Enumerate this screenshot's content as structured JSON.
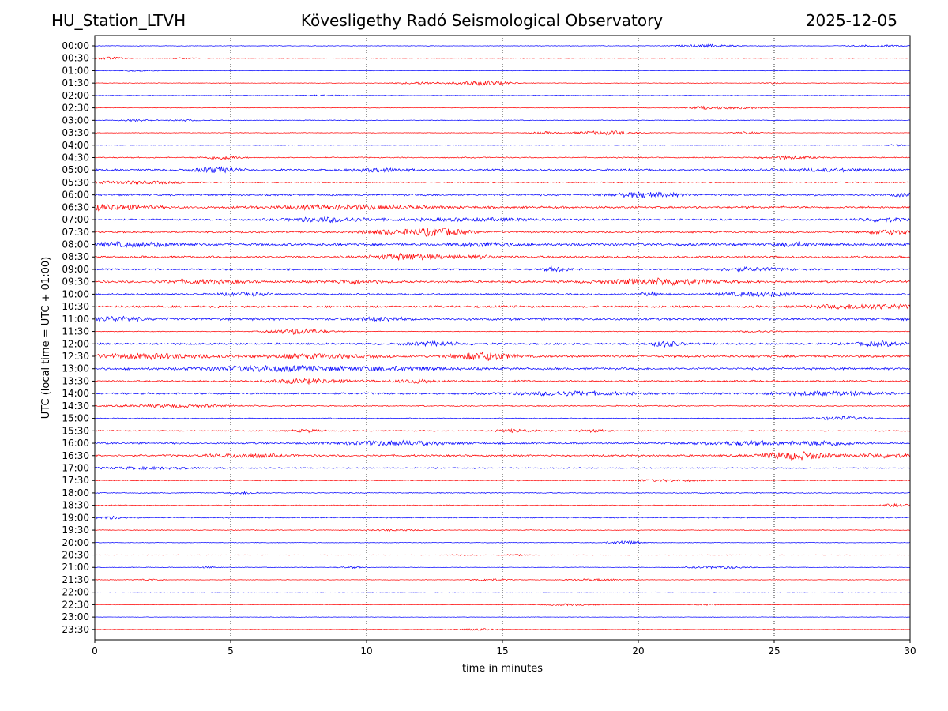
{
  "header": {
    "station": "HU_Station_LTVH",
    "observatory": "Kövesligethy Radó Seismological Observatory",
    "date": "2025-12-05"
  },
  "chart_data": {
    "type": "line",
    "title": "Kövesligethy Radó Seismological Observatory",
    "xlabel": "time in minutes",
    "ylabel": "UTC (local time = UTC + 01:00)",
    "xlim": [
      0,
      30
    ],
    "x_ticks": [
      0,
      5,
      10,
      15,
      20,
      25,
      30
    ],
    "grid": "vertical dotted lines at each x tick",
    "trace_colors": [
      "#0000ff",
      "#ff0000"
    ],
    "rows": [
      {
        "label": "00:00",
        "color": "#0000ff",
        "base": 0.3,
        "events": [
          {
            "t": 22.5,
            "a": 1.5,
            "w": 1.0
          },
          {
            "t": 28.8,
            "a": 1.2,
            "w": 0.8
          }
        ]
      },
      {
        "label": "00:30",
        "color": "#ff0000",
        "base": 0.3,
        "events": [
          {
            "t": 0.5,
            "a": 1.4,
            "w": 0.6
          },
          {
            "t": 3.3,
            "a": 0.8,
            "w": 0.5
          }
        ]
      },
      {
        "label": "01:00",
        "color": "#0000ff",
        "base": 0.3,
        "events": [
          {
            "t": 1.5,
            "a": 0.8,
            "w": 0.6
          }
        ]
      },
      {
        "label": "01:30",
        "color": "#ff0000",
        "base": 0.3,
        "events": [
          {
            "t": 14.3,
            "a": 2.8,
            "w": 1.0
          },
          {
            "t": 12.0,
            "a": 1.2,
            "w": 1.0
          },
          {
            "t": 25.0,
            "a": 0.9,
            "w": 0.3
          }
        ]
      },
      {
        "label": "02:00",
        "color": "#0000ff",
        "base": 0.3,
        "events": [
          {
            "t": 8.5,
            "a": 0.7,
            "w": 0.8
          }
        ]
      },
      {
        "label": "02:30",
        "color": "#ff0000",
        "base": 0.3,
        "events": [
          {
            "t": 22.5,
            "a": 1.8,
            "w": 0.8
          },
          {
            "t": 24.0,
            "a": 1.0,
            "w": 0.8
          }
        ]
      },
      {
        "label": "03:00",
        "color": "#0000ff",
        "base": 0.4,
        "events": [
          {
            "t": 1.5,
            "a": 1.0,
            "w": 0.5
          },
          {
            "t": 3.3,
            "a": 0.8,
            "w": 0.5
          }
        ]
      },
      {
        "label": "03:30",
        "color": "#ff0000",
        "base": 0.3,
        "events": [
          {
            "t": 18.8,
            "a": 2.2,
            "w": 1.2
          },
          {
            "t": 16.5,
            "a": 1.2,
            "w": 0.5
          },
          {
            "t": 24.0,
            "a": 1.0,
            "w": 0.6
          }
        ]
      },
      {
        "label": "04:00",
        "color": "#0000ff",
        "base": 0.3,
        "events": [
          {
            "t": 29.5,
            "a": 0.9,
            "w": 0.4
          }
        ]
      },
      {
        "label": "04:30",
        "color": "#ff0000",
        "base": 0.6,
        "events": [
          {
            "t": 4.7,
            "a": 2.2,
            "w": 0.6
          },
          {
            "t": 25.5,
            "a": 1.5,
            "w": 1.0
          }
        ]
      },
      {
        "label": "05:00",
        "color": "#0000ff",
        "base": 1.0,
        "events": [
          {
            "t": 4.5,
            "a": 3.0,
            "w": 0.8
          },
          {
            "t": 10.5,
            "a": 1.8,
            "w": 1.0
          },
          {
            "t": 27.0,
            "a": 1.3,
            "w": 2.0
          }
        ]
      },
      {
        "label": "05:30",
        "color": "#ff0000",
        "base": 0.6,
        "events": [
          {
            "t": 1.5,
            "a": 1.5,
            "w": 2.0
          }
        ]
      },
      {
        "label": "06:00",
        "color": "#0000ff",
        "base": 1.0,
        "events": [
          {
            "t": 20.3,
            "a": 3.0,
            "w": 1.2
          },
          {
            "t": 29.8,
            "a": 1.8,
            "w": 0.4
          }
        ]
      },
      {
        "label": "06:30",
        "color": "#ff0000",
        "base": 1.1,
        "events": [
          {
            "t": 0.5,
            "a": 3.0,
            "w": 1.5
          },
          {
            "t": 9.5,
            "a": 2.2,
            "w": 3.0
          }
        ]
      },
      {
        "label": "07:00",
        "color": "#0000ff",
        "base": 0.9,
        "events": [
          {
            "t": 8.5,
            "a": 2.5,
            "w": 1.5
          },
          {
            "t": 14.0,
            "a": 1.5,
            "w": 3.0
          },
          {
            "t": 29.0,
            "a": 2.0,
            "w": 1.0
          }
        ]
      },
      {
        "label": "07:30",
        "color": "#ff0000",
        "base": 0.9,
        "events": [
          {
            "t": 12.5,
            "a": 4.5,
            "w": 1.2
          },
          {
            "t": 10.5,
            "a": 2.0,
            "w": 0.8
          },
          {
            "t": 29.3,
            "a": 2.5,
            "w": 0.8
          }
        ]
      },
      {
        "label": "08:00",
        "color": "#0000ff",
        "base": 1.4,
        "events": [
          {
            "t": 1.5,
            "a": 2.0,
            "w": 2.0
          },
          {
            "t": 14.3,
            "a": 2.0,
            "w": 1.0
          },
          {
            "t": 25.8,
            "a": 2.5,
            "w": 0.6
          }
        ]
      },
      {
        "label": "08:30",
        "color": "#ff0000",
        "base": 1.1,
        "events": [
          {
            "t": 11.5,
            "a": 3.5,
            "w": 1.2
          },
          {
            "t": 14.0,
            "a": 1.5,
            "w": 1.0
          }
        ]
      },
      {
        "label": "09:00",
        "color": "#0000ff",
        "base": 0.9,
        "events": [
          {
            "t": 17.0,
            "a": 2.5,
            "w": 0.5
          },
          {
            "t": 24.0,
            "a": 1.8,
            "w": 1.5
          }
        ]
      },
      {
        "label": "09:30",
        "color": "#ff0000",
        "base": 1.1,
        "events": [
          {
            "t": 20.8,
            "a": 3.5,
            "w": 2.0
          },
          {
            "t": 9.5,
            "a": 2.0,
            "w": 1.0
          },
          {
            "t": 4.0,
            "a": 2.0,
            "w": 1.5
          }
        ]
      },
      {
        "label": "10:00",
        "color": "#0000ff",
        "base": 0.9,
        "events": [
          {
            "t": 24.5,
            "a": 2.5,
            "w": 1.5
          },
          {
            "t": 5.5,
            "a": 1.5,
            "w": 1.0
          },
          {
            "t": 20.5,
            "a": 1.8,
            "w": 0.5
          }
        ]
      },
      {
        "label": "10:30",
        "color": "#ff0000",
        "base": 1.1,
        "events": [
          {
            "t": 28.5,
            "a": 2.5,
            "w": 2.0
          }
        ]
      },
      {
        "label": "11:00",
        "color": "#0000ff",
        "base": 1.3,
        "events": [
          {
            "t": 0.8,
            "a": 2.5,
            "w": 0.8
          },
          {
            "t": 10.5,
            "a": 1.8,
            "w": 1.0
          }
        ]
      },
      {
        "label": "11:30",
        "color": "#ff0000",
        "base": 0.4,
        "events": [
          {
            "t": 7.5,
            "a": 3.5,
            "w": 1.0
          },
          {
            "t": 24.5,
            "a": 1.0,
            "w": 0.8
          }
        ]
      },
      {
        "label": "12:00",
        "color": "#0000ff",
        "base": 1.0,
        "events": [
          {
            "t": 12.5,
            "a": 2.2,
            "w": 1.0
          },
          {
            "t": 21.0,
            "a": 2.8,
            "w": 0.6
          },
          {
            "t": 29.0,
            "a": 2.5,
            "w": 1.0
          }
        ]
      },
      {
        "label": "12:30",
        "color": "#ff0000",
        "base": 1.3,
        "events": [
          {
            "t": 14.3,
            "a": 4.5,
            "w": 1.0
          },
          {
            "t": 2.0,
            "a": 2.5,
            "w": 2.0
          },
          {
            "t": 8.0,
            "a": 2.0,
            "w": 2.0
          }
        ]
      },
      {
        "label": "13:00",
        "color": "#0000ff",
        "base": 1.1,
        "events": [
          {
            "t": 6.5,
            "a": 3.0,
            "w": 2.5
          },
          {
            "t": 11.0,
            "a": 2.0,
            "w": 2.0
          }
        ]
      },
      {
        "label": "13:30",
        "color": "#ff0000",
        "base": 0.9,
        "events": [
          {
            "t": 7.8,
            "a": 2.5,
            "w": 1.5
          },
          {
            "t": 11.8,
            "a": 2.0,
            "w": 0.8
          }
        ]
      },
      {
        "label": "14:00",
        "color": "#0000ff",
        "base": 1.0,
        "events": [
          {
            "t": 17.5,
            "a": 2.2,
            "w": 2.0
          },
          {
            "t": 27.0,
            "a": 2.2,
            "w": 2.0
          }
        ]
      },
      {
        "label": "14:30",
        "color": "#ff0000",
        "base": 0.6,
        "events": [
          {
            "t": 3.0,
            "a": 1.5,
            "w": 2.0
          }
        ]
      },
      {
        "label": "15:00",
        "color": "#0000ff",
        "base": 0.5,
        "events": [
          {
            "t": 27.5,
            "a": 2.0,
            "w": 1.0
          }
        ]
      },
      {
        "label": "15:30",
        "color": "#ff0000",
        "base": 0.6,
        "events": [
          {
            "t": 7.8,
            "a": 1.5,
            "w": 0.6
          },
          {
            "t": 15.5,
            "a": 1.8,
            "w": 0.8
          },
          {
            "t": 18.3,
            "a": 1.5,
            "w": 0.6
          }
        ]
      },
      {
        "label": "16:00",
        "color": "#0000ff",
        "base": 0.9,
        "events": [
          {
            "t": 11.0,
            "a": 2.5,
            "w": 2.0
          },
          {
            "t": 24.0,
            "a": 2.0,
            "w": 2.0
          },
          {
            "t": 27.0,
            "a": 2.5,
            "w": 1.0
          }
        ]
      },
      {
        "label": "16:30",
        "color": "#ff0000",
        "base": 1.0,
        "events": [
          {
            "t": 25.8,
            "a": 4.5,
            "w": 1.2
          },
          {
            "t": 5.5,
            "a": 2.0,
            "w": 1.5
          },
          {
            "t": 29.0,
            "a": 2.0,
            "w": 1.0
          }
        ]
      },
      {
        "label": "17:00",
        "color": "#0000ff",
        "base": 0.6,
        "events": [
          {
            "t": 2.0,
            "a": 1.2,
            "w": 2.0
          }
        ]
      },
      {
        "label": "17:30",
        "color": "#ff0000",
        "base": 0.5,
        "events": [
          {
            "t": 21.0,
            "a": 1.0,
            "w": 1.5
          }
        ]
      },
      {
        "label": "18:00",
        "color": "#0000ff",
        "base": 0.5,
        "events": [
          {
            "t": 5.5,
            "a": 1.2,
            "w": 0.5
          }
        ]
      },
      {
        "label": "18:30",
        "color": "#ff0000",
        "base": 0.5,
        "events": [
          {
            "t": 29.5,
            "a": 1.5,
            "w": 0.5
          }
        ]
      },
      {
        "label": "19:00",
        "color": "#0000ff",
        "base": 0.6,
        "events": [
          {
            "t": 0.5,
            "a": 1.5,
            "w": 0.5
          }
        ]
      },
      {
        "label": "19:30",
        "color": "#ff0000",
        "base": 0.4,
        "events": [
          {
            "t": 11.0,
            "a": 0.8,
            "w": 1.0
          }
        ]
      },
      {
        "label": "20:00",
        "color": "#0000ff",
        "base": 0.3,
        "events": [
          {
            "t": 19.5,
            "a": 2.2,
            "w": 0.6
          }
        ]
      },
      {
        "label": "20:30",
        "color": "#ff0000",
        "base": 0.3,
        "events": [
          {
            "t": 13.5,
            "a": 0.8,
            "w": 0.5
          },
          {
            "t": 15.5,
            "a": 0.8,
            "w": 0.5
          }
        ]
      },
      {
        "label": "21:00",
        "color": "#0000ff",
        "base": 0.3,
        "events": [
          {
            "t": 23.0,
            "a": 1.5,
            "w": 1.0
          },
          {
            "t": 9.5,
            "a": 1.0,
            "w": 0.5
          },
          {
            "t": 4.2,
            "a": 0.8,
            "w": 0.4
          }
        ]
      },
      {
        "label": "21:30",
        "color": "#ff0000",
        "base": 0.3,
        "events": [
          {
            "t": 14.5,
            "a": 1.5,
            "w": 0.6
          },
          {
            "t": 18.5,
            "a": 1.2,
            "w": 1.0
          },
          {
            "t": 2.0,
            "a": 1.0,
            "w": 0.5
          }
        ]
      },
      {
        "label": "22:00",
        "color": "#0000ff",
        "base": 0.3,
        "events": []
      },
      {
        "label": "22:30",
        "color": "#ff0000",
        "base": 0.3,
        "events": [
          {
            "t": 17.5,
            "a": 1.0,
            "w": 1.0
          },
          {
            "t": 22.5,
            "a": 0.8,
            "w": 0.5
          }
        ]
      },
      {
        "label": "23:00",
        "color": "#0000ff",
        "base": 0.25,
        "events": []
      },
      {
        "label": "23:30",
        "color": "#ff0000",
        "base": 0.25,
        "events": [
          {
            "t": 14.0,
            "a": 1.0,
            "w": 0.8
          }
        ]
      }
    ]
  }
}
